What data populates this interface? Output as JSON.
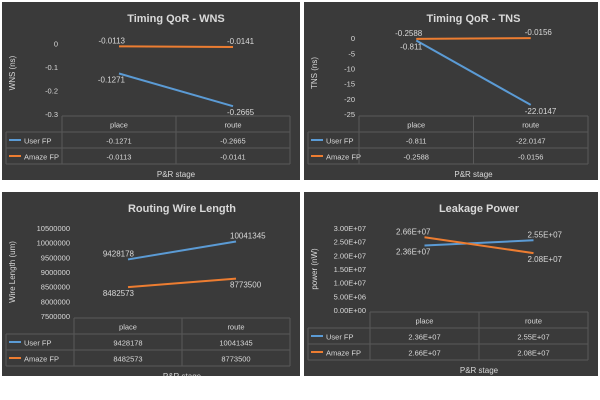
{
  "colors": {
    "user": "#5b9bd5",
    "amaze": "#ed7d31",
    "text": "#d9d9d9",
    "grid": "#595959"
  },
  "legend_names": [
    "User FP",
    "Amaze FP"
  ],
  "chart_data": [
    {
      "type": "line",
      "title": "Timing QoR - WNS",
      "ylabel": "WNS (ns)",
      "xlabel": "P&R stage",
      "categories": [
        "place",
        "route"
      ],
      "ylim": [
        -0.3,
        0.05
      ],
      "yticks": [
        0,
        -0.1,
        -0.2,
        -0.3
      ],
      "ytick_labels": [
        "0",
        "-0.1",
        "-0.2",
        "-0.3"
      ],
      "series": [
        {
          "name": "User FP",
          "values": [
            -0.1271,
            -0.2665
          ],
          "labels": [
            "-0.1271",
            "-0.2665"
          ]
        },
        {
          "name": "Amaze FP",
          "values": [
            -0.0113,
            -0.0141
          ],
          "labels": [
            "-0.0113",
            "-0.0141"
          ]
        }
      ]
    },
    {
      "type": "line",
      "title": "Timing QoR - TNS",
      "ylabel": "TNS (ns)",
      "xlabel": "P&R stage",
      "categories": [
        "place",
        "route"
      ],
      "ylim": [
        -25,
        2
      ],
      "yticks": [
        0,
        -5,
        -10,
        -15,
        -20,
        -25
      ],
      "ytick_labels": [
        "0",
        "-5",
        "-10",
        "-15",
        "-20",
        "-25"
      ],
      "series": [
        {
          "name": "User FP",
          "values": [
            -0.811,
            -22.0147
          ],
          "labels": [
            "-0.811",
            "-22.0147"
          ]
        },
        {
          "name": "Amaze FP",
          "values": [
            -0.2588,
            -0.0156
          ],
          "labels": [
            "-0.2588",
            "-0.0156"
          ]
        }
      ]
    },
    {
      "type": "line",
      "title": "Routing Wire Length",
      "ylabel": "Wire Length (um)",
      "xlabel": "P&R stage",
      "categories": [
        "place",
        "route"
      ],
      "ylim": [
        7500000,
        10500000
      ],
      "yticks": [
        10500000,
        10000000,
        9500000,
        9000000,
        8500000,
        8000000,
        7500000
      ],
      "ytick_labels": [
        "10500000",
        "10000000",
        "9500000",
        "9000000",
        "8500000",
        "8000000",
        "7500000"
      ],
      "series": [
        {
          "name": "User FP",
          "values": [
            9428178,
            10041345
          ],
          "labels": [
            "9428178",
            "10041345"
          ]
        },
        {
          "name": "Amaze FP",
          "values": [
            8482573,
            8773500
          ],
          "labels": [
            "8482573",
            "8773500"
          ]
        }
      ]
    },
    {
      "type": "line",
      "title": "Leakage Power",
      "ylabel": "power (nW)",
      "xlabel": "P&R stage",
      "categories": [
        "place",
        "route"
      ],
      "ylim": [
        0,
        30000000
      ],
      "yticks": [
        30000000,
        25000000,
        20000000,
        15000000,
        10000000,
        5000000,
        0
      ],
      "ytick_labels": [
        "3.00E+07",
        "2.50E+07",
        "2.00E+07",
        "1.50E+07",
        "1.00E+07",
        "5.00E+06",
        "0.00E+00"
      ],
      "series": [
        {
          "name": "User FP",
          "values": [
            23600000,
            25500000
          ],
          "labels": [
            "2.36E+07",
            "2.55E+07"
          ]
        },
        {
          "name": "Amaze FP",
          "values": [
            26600000,
            20800000
          ],
          "labels": [
            "2.66E+07",
            "2.08E+07"
          ]
        }
      ]
    }
  ]
}
